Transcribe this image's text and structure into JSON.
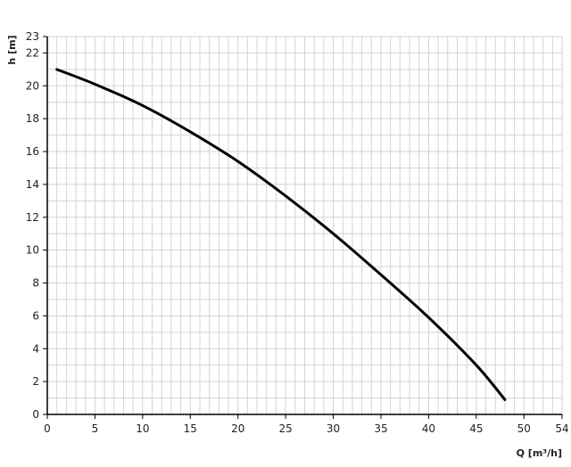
{
  "chart_data": {
    "type": "line",
    "title": "",
    "xlabel": "Q [m³/h]",
    "ylabel": "h [m]",
    "xlim": [
      0,
      54
    ],
    "ylim": [
      0,
      23
    ],
    "xticks": [
      0,
      5,
      10,
      15,
      20,
      25,
      30,
      35,
      40,
      45,
      50,
      54
    ],
    "yticks": [
      0,
      2,
      4,
      6,
      8,
      10,
      12,
      14,
      16,
      18,
      20,
      22,
      23
    ],
    "grid": true,
    "grid_step_x": 1,
    "grid_step_y": 1,
    "colors": {
      "curve": "#000000",
      "grid": "#d3d3d3",
      "axis": "#000000"
    },
    "series": [
      {
        "x": [
          1,
          5,
          10,
          15,
          20,
          25,
          30,
          35,
          40,
          45,
          48
        ],
        "y": [
          21.0,
          20.1,
          18.8,
          17.2,
          15.4,
          13.3,
          11.0,
          8.5,
          5.9,
          3.0,
          0.9
        ]
      }
    ]
  }
}
